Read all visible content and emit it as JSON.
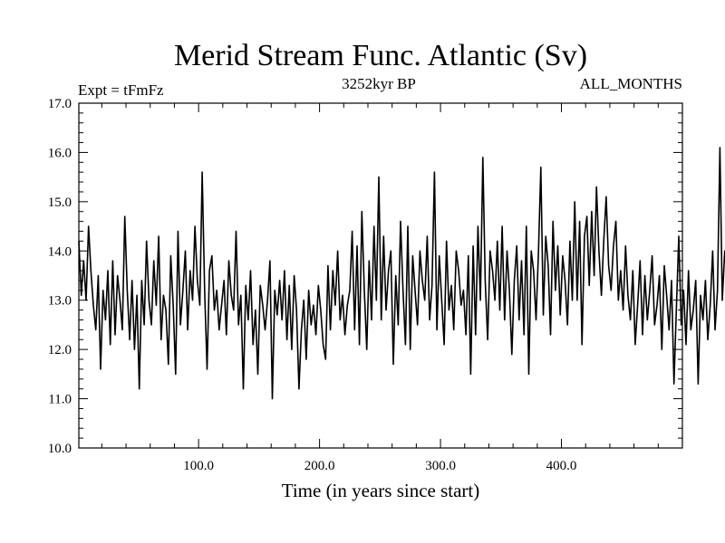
{
  "chart_data": {
    "type": "line",
    "title": "Merid Stream Func. Atlantic (Sv)",
    "subtitle_left": "Expt = tFmFz",
    "subtitle_center": "3252kyr BP",
    "subtitle_right": "ALL_MONTHS",
    "xlabel": "Time (in years since start)",
    "ylabel": "",
    "xlim": [
      1,
      500
    ],
    "ylim": [
      10.0,
      17.0
    ],
    "x_ticks": [
      100,
      200,
      300,
      400
    ],
    "x_tick_labels": [
      "100.0",
      "200.0",
      "300.0",
      "400.0"
    ],
    "y_ticks": [
      10,
      11,
      12,
      13,
      14,
      15,
      16,
      17
    ],
    "y_tick_labels": [
      "10.0",
      "11.0",
      "12.0",
      "13.0",
      "14.0",
      "15.0",
      "16.0",
      "17.0"
    ],
    "x_minor_step": 20,
    "y_minor_step": 0.2,
    "grid": false,
    "series": [
      {
        "name": "Meridional stream function",
        "color": "#000000",
        "x_start": 1,
        "x_step": 2,
        "values": [
          14.2,
          13.1,
          13.8,
          13.0,
          14.5,
          13.6,
          12.9,
          12.4,
          13.5,
          11.6,
          13.2,
          12.6,
          13.6,
          12.1,
          13.8,
          12.3,
          13.5,
          13.0,
          12.4,
          14.7,
          13.2,
          12.2,
          13.4,
          12.0,
          13.1,
          11.2,
          13.4,
          12.5,
          14.2,
          13.0,
          12.5,
          13.8,
          12.9,
          14.3,
          12.2,
          13.1,
          12.8,
          11.7,
          13.9,
          12.9,
          11.5,
          14.4,
          12.5,
          13.2,
          14.0,
          12.4,
          13.6,
          13.0,
          14.5,
          13.4,
          12.9,
          15.6,
          13.2,
          11.6,
          13.6,
          13.9,
          12.8,
          13.2,
          12.4,
          12.9,
          13.4,
          12.3,
          13.8,
          13.1,
          12.8,
          14.4,
          12.5,
          13.1,
          11.2,
          13.3,
          12.6,
          13.6,
          12.1,
          12.8,
          11.5,
          13.3,
          12.9,
          12.4,
          13.0,
          13.8,
          11.0,
          13.2,
          12.7,
          13.4,
          12.6,
          13.6,
          12.2,
          13.3,
          12.0,
          13.5,
          12.8,
          11.2,
          12.4,
          13.0,
          11.8,
          13.2,
          12.5,
          12.9,
          12.3,
          13.3,
          12.8,
          12.1,
          11.8,
          13.7,
          12.4,
          13.6,
          12.9,
          14.0,
          12.6,
          13.1,
          12.3,
          12.9,
          13.2,
          14.4,
          12.4,
          14.1,
          12.1,
          14.8,
          13.2,
          12.0,
          13.8,
          12.6,
          14.5,
          13.0,
          15.5,
          12.6,
          14.3,
          12.8,
          13.6,
          14.0,
          11.7,
          13.5,
          12.5,
          14.6,
          13.2,
          12.1,
          14.5,
          12.0,
          13.9,
          13.2,
          12.5,
          14.0,
          13.4,
          13.0,
          14.3,
          12.6,
          13.3,
          15.6,
          12.4,
          13.9,
          13.0,
          12.1,
          14.2,
          12.8,
          13.3,
          12.4,
          14.0,
          13.6,
          12.9,
          13.2,
          12.3,
          13.9,
          11.5,
          14.1,
          12.3,
          14.5,
          13.0,
          15.9,
          13.4,
          12.2,
          14.0,
          13.6,
          13.0,
          14.2,
          12.8,
          14.5,
          12.6,
          14.0,
          13.2,
          11.9,
          13.4,
          14.1,
          12.6,
          13.8,
          12.3,
          14.5,
          11.5,
          14.0,
          13.6,
          12.6,
          14.0,
          15.7,
          12.7,
          14.3,
          13.7,
          12.3,
          14.6,
          13.2,
          14.1,
          12.7,
          13.9,
          13.4,
          12.5,
          14.2,
          13.0,
          15.0,
          13.0,
          14.6,
          12.1,
          14.3,
          14.7,
          13.3,
          14.8,
          13.5,
          15.3,
          14.0,
          13.1,
          14.2,
          15.1,
          13.7,
          13.2,
          14.1,
          14.6,
          13.0,
          13.6,
          12.8,
          14.1,
          13.1,
          12.6,
          13.6,
          12.1,
          12.9,
          13.8,
          12.3,
          13.5,
          12.6,
          13.2,
          13.9,
          12.5,
          12.9,
          13.5,
          12.0,
          13.7,
          13.1,
          12.4,
          13.4,
          11.3,
          12.8,
          14.3,
          12.5,
          13.2,
          12.1,
          13.6,
          12.4,
          12.8,
          13.4,
          11.3,
          13.1,
          12.6,
          13.4,
          12.2,
          12.9,
          14.0,
          12.4,
          13.2,
          16.1,
          13.0,
          14.0,
          13.4,
          13.6,
          12.5,
          13.8,
          13.2,
          14.5,
          13.1,
          12.8,
          14.6,
          13.7
        ]
      }
    ]
  }
}
